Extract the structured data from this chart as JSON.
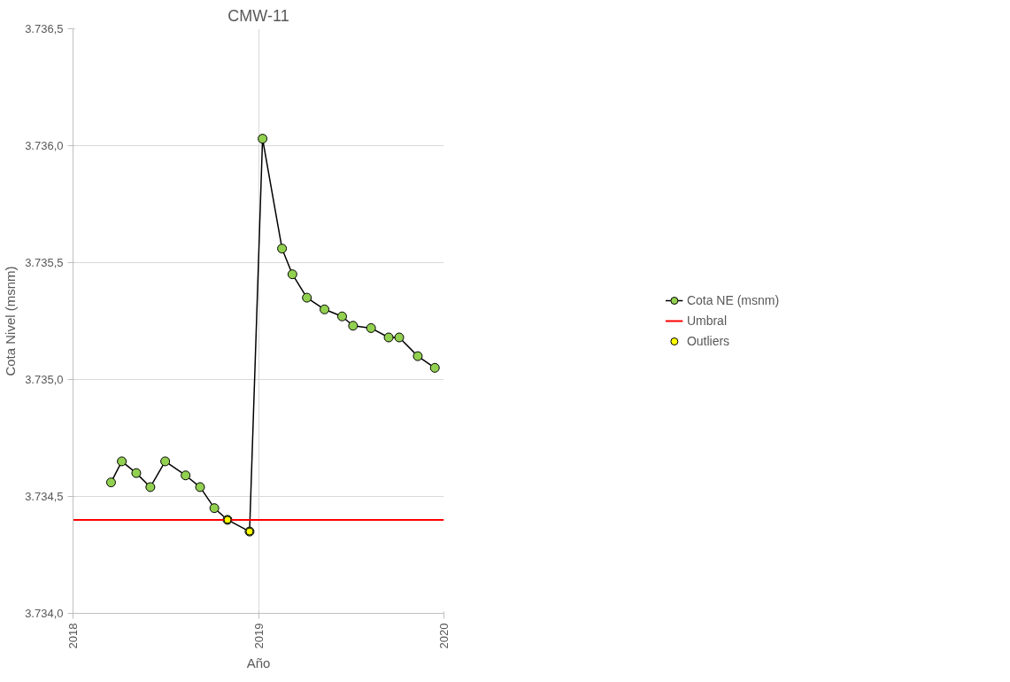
{
  "chart_data": {
    "type": "line",
    "title": "CMW-11",
    "xlabel": "Año",
    "ylabel": "Cota Nivel (msnm)",
    "x": [
      2018.205,
      2018.263,
      2018.341,
      2018.417,
      2018.497,
      2018.607,
      2018.685,
      2018.762,
      2018.833,
      2018.952,
      2019.022,
      2019.127,
      2019.183,
      2019.261,
      2019.356,
      2019.451,
      2019.51,
      2019.607,
      2019.702,
      2019.759,
      2019.859,
      2019.951
    ],
    "series": [
      {
        "name": "Cota NE (msnm)",
        "color": "#92d050",
        "marker": "circle",
        "line_style": "solid",
        "values": [
          3734.56,
          3734.65,
          3734.6,
          3734.54,
          3734.65,
          3734.59,
          3734.54,
          3734.45,
          3734.4,
          3734.35,
          3736.03,
          3735.56,
          3735.45,
          3735.35,
          3735.3,
          3735.27,
          3735.23,
          3735.22,
          3735.18,
          3735.18,
          3735.1,
          3735.05
        ]
      },
      {
        "name": "Outliers",
        "type": "scatter",
        "color": "#ffff00",
        "marker": "circle",
        "x": [
          2018.833,
          2018.952
        ],
        "values": [
          3734.4,
          3734.35
        ]
      }
    ],
    "ref_lines": [
      {
        "axis": "y",
        "value": 3734.4,
        "label": "Umbral",
        "color": "#ff0000",
        "line_style": "solid"
      }
    ],
    "xlim": [
      2018,
      2020
    ],
    "xticks": [
      2018,
      2019,
      2020
    ],
    "ylim": [
      3734.0,
      3736.5
    ],
    "yticks": [
      {
        "value": 3734.0,
        "label": "3.734,0"
      },
      {
        "value": 3734.5,
        "label": "3.734,5"
      },
      {
        "value": 3735.0,
        "label": "3.735,0"
      },
      {
        "value": 3735.5,
        "label": "3.735,5"
      },
      {
        "value": 3736.0,
        "label": "3.736,0"
      },
      {
        "value": 3736.5,
        "label": "3.736,5"
      }
    ],
    "grid": true,
    "legend": "right"
  }
}
